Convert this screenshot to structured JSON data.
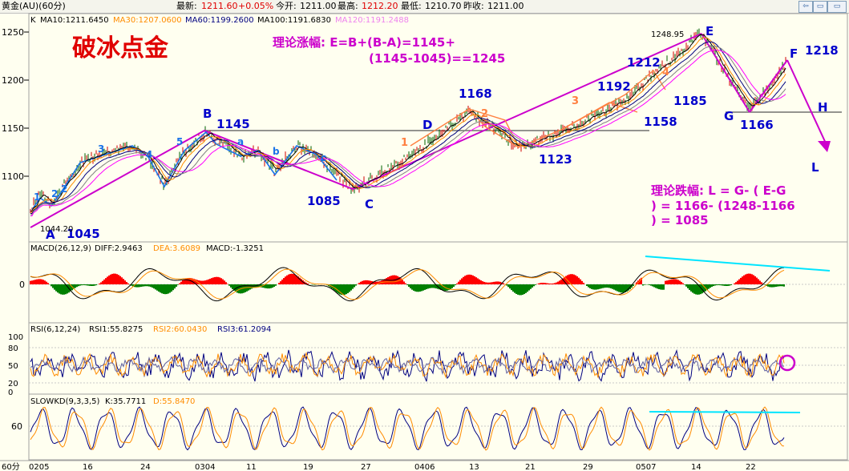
{
  "header": {
    "symbol": "黄金(AU)(60分)",
    "latest_label": "最新:",
    "latest_value": "1211.60",
    "change": "+0.05%",
    "open_label": "今开:",
    "open_value": "1211.00",
    "high_label": "最高:",
    "high_value": "1212.20",
    "low_label": "最低:",
    "low_value": "1210.70",
    "prev_label": "昨收:",
    "prev_value": "1211.00"
  },
  "nav_buttons": [
    "⇦",
    "▭",
    "▭"
  ],
  "colors": {
    "background": "#fffff0",
    "ma10": "#000000",
    "ma30": "#ff8c00",
    "ma60": "#000080",
    "ma100": "#808080",
    "ma120": "#ff00ff",
    "wave_blue": "#1a73e8",
    "wave_orange": "#ff8040",
    "trend_magenta": "#cc00cc",
    "label_blue": "#0000cc",
    "cyan_line": "#00e5ff",
    "macd_up": "#ff0000",
    "macd_down": "#008000"
  },
  "main_panel": {
    "indicator_prefix": "K",
    "ma10": "MA10:1211.6450",
    "ma30": "MA30:1207.0600",
    "ma60": "MA60:1199.2600",
    "ma100": "MA100:1191.6830",
    "ma120": "MA120:1191.2488",
    "y_ticks": [
      "1250",
      "1200",
      "1150",
      "1100"
    ],
    "title": "破冰点金",
    "rise_line1": "理论涨幅:   E=B+(B-A)=1145+",
    "rise_line2": "(1145-1045)==1245",
    "fall_line1": "理论跌幅: L = G- ( E-G",
    "fall_line2": ") = 1166- (1248-1166",
    "fall_line3": ") = 1085",
    "low_marker": "1044.20",
    "high_marker": "1248.95",
    "points": {
      "A": "A",
      "A_val": "1045",
      "B": "B",
      "B_val": "1145",
      "C": "C",
      "C_val": "1085",
      "D": "D",
      "D_val": "1168",
      "D2_val": "1123",
      "E": "E",
      "E_val": "1212",
      "E2_val": "1192",
      "E3_val": "1158",
      "E4_val": "1185",
      "F": "F",
      "F_val": "1218",
      "G": "G",
      "G_val": "1166",
      "H": "H",
      "L": "L"
    },
    "wave_counts": [
      "1",
      "2",
      "3",
      "4",
      "5",
      "a",
      "b",
      "c"
    ],
    "orange_counts": [
      "1",
      "2",
      "3",
      "4"
    ]
  },
  "macd_panel": {
    "label": "MACD(26,12,9)",
    "diff": "DIFF:2.9463",
    "dea": "DEA:3.6089",
    "macd": "MACD:-1.3251",
    "zero_tick": "0"
  },
  "rsi_panel": {
    "label": "RSI(6,12,24)",
    "rsi1": "RSI1:55.8275",
    "rsi2": "RSI2:60.0430",
    "rsi3": "RSI3:61.2094",
    "ticks": [
      "100",
      "80",
      "50",
      "20",
      "0"
    ]
  },
  "kd_panel": {
    "label": "SLOWKD(9,3,3,5)",
    "k": "K:35.7711",
    "d": "D:55.8470",
    "tick": "60"
  },
  "x_axis": {
    "period": "60分",
    "labels": [
      "0205",
      "16",
      "24",
      "0304",
      "11",
      "19",
      "27",
      "0406",
      "13",
      "21",
      "29",
      "0507",
      "14",
      "22"
    ]
  },
  "chart_data": {
    "type": "line",
    "title": "破冰点金",
    "xlabel": "",
    "ylabel": "",
    "ylim": [
      1030,
      1265
    ],
    "x": [
      "0205",
      "16",
      "24",
      "0304",
      "11",
      "19",
      "27",
      "0406",
      "13",
      "21",
      "29",
      "0507",
      "14",
      "22"
    ],
    "series": [
      {
        "name": "Wave path",
        "points": [
          {
            "label": "A",
            "value": 1045
          },
          {
            "label": "B",
            "value": 1145
          },
          {
            "label": "C",
            "value": 1085
          },
          {
            "label": "D",
            "value": 1168
          },
          {
            "label": "",
            "value": 1123
          },
          {
            "label": "E",
            "value": 1248.95
          },
          {
            "label": "G",
            "value": 1166
          },
          {
            "label": "F",
            "value": 1218
          }
        ]
      }
    ],
    "annotations": [
      "1044.20",
      "1248.95",
      "1212",
      "1192",
      "1158",
      "1185",
      "1218",
      "1166",
      "1085"
    ]
  }
}
